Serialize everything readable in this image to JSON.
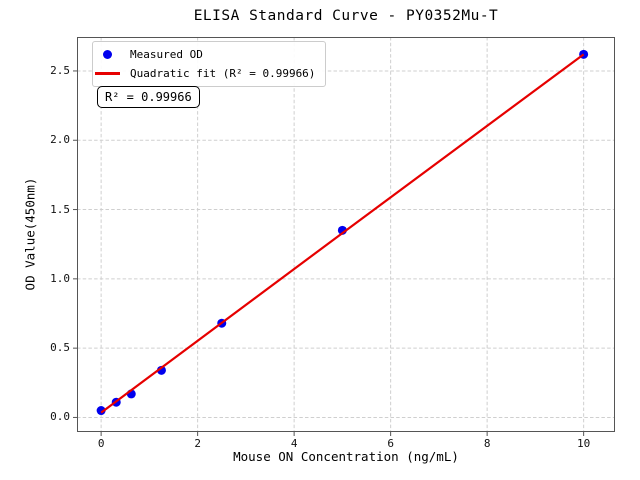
{
  "chart_data": {
    "type": "scatter",
    "title": "ELISA Standard Curve - PY0352Mu-T",
    "xlabel": "Mouse ON Concentration (ng/mL)",
    "ylabel": "OD Value(450nm)",
    "xlim": [
      -0.5,
      10.65
    ],
    "ylim": [
      -0.105,
      2.745
    ],
    "grid": true,
    "legend_position": "upper-left",
    "x_ticks": [
      0,
      2,
      4,
      6,
      8,
      10
    ],
    "x_tick_labels": [
      "0",
      "2",
      "4",
      "6",
      "8",
      "10"
    ],
    "y_ticks": [
      0,
      0.5,
      1,
      1.5,
      2,
      2.5
    ],
    "y_tick_labels": [
      "0.0",
      "0.5",
      "1.0",
      "1.5",
      "2.0",
      "2.5"
    ],
    "series": [
      {
        "name": "Measured OD",
        "kind": "scatter",
        "color": "#0000ee",
        "x": [
          0,
          0.313,
          0.625,
          1.25,
          2.5,
          5,
          10
        ],
        "y": [
          0.05,
          0.11,
          0.17,
          0.34,
          0.68,
          1.35,
          2.62
        ]
      },
      {
        "name": "Quadratic fit (R² = 0.99966)",
        "kind": "line",
        "color": "#e60000",
        "x": [
          0,
          5,
          10
        ],
        "y": [
          0.035,
          1.33,
          2.62
        ]
      }
    ],
    "r_squared": 0.99966
  },
  "legend": {
    "items": [
      {
        "label": "Measured OD",
        "marker": "dot",
        "color": "#0000ee"
      },
      {
        "label": "Quadratic fit (R² = 0.99966)",
        "marker": "line",
        "color": "#e60000"
      }
    ]
  },
  "annotation": {
    "text": "R² = 0.99966"
  }
}
